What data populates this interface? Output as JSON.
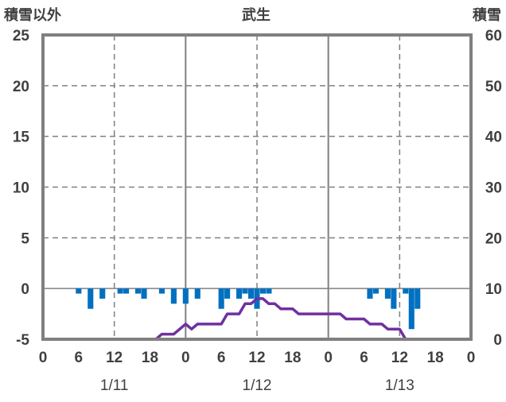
{
  "chart_data": {
    "type": "bar+line",
    "title": "武生",
    "y_left_label": "積雪以外",
    "y_right_label": "積雪",
    "y_left_ticks": [
      "25",
      "20",
      "15",
      "10",
      "5",
      "0",
      "-5"
    ],
    "y_right_ticks": [
      "60",
      "50",
      "40",
      "30",
      "20",
      "10",
      "0"
    ],
    "ylim_left": [
      -5,
      25
    ],
    "ylim_right": [
      0,
      60
    ],
    "x_hours": [
      0,
      72
    ],
    "x_tick_labels": [
      "0",
      "6",
      "12",
      "18",
      "0",
      "6",
      "12",
      "18",
      "0",
      "6",
      "12",
      "18",
      "0"
    ],
    "date_labels": [
      "1/11",
      "1/12",
      "1/13"
    ],
    "grid": true,
    "colors": {
      "bars": "#0070C0",
      "line": "#7030A0",
      "frame": "#808080"
    },
    "series": [
      {
        "kind": "bar",
        "axis": "left",
        "hours": [
          6,
          8,
          10,
          13,
          14,
          16,
          17,
          20,
          22,
          24,
          26,
          30,
          31,
          33,
          34,
          35,
          36,
          37,
          38,
          55,
          56,
          58,
          59,
          61,
          62,
          63
        ],
        "values": [
          -0.5,
          -2,
          -1,
          -0.5,
          -0.5,
          -0.5,
          -1,
          -0.5,
          -1.5,
          -1.5,
          -1,
          -2,
          -1,
          -1,
          -0.5,
          -1,
          -2,
          -0.5,
          -0.5,
          -1,
          -0.5,
          -1,
          -2,
          -0.5,
          -4,
          -2
        ]
      },
      {
        "kind": "line",
        "axis": "right",
        "hours": [
          12,
          19,
          20,
          22,
          24,
          25,
          26,
          30,
          31,
          33,
          34,
          35,
          36,
          37,
          38,
          39,
          40,
          42,
          43,
          46,
          50,
          51,
          54,
          55,
          57,
          58,
          60,
          61,
          72
        ],
        "values": [
          0,
          0,
          1,
          1,
          3,
          2,
          3,
          3,
          5,
          5,
          7,
          7,
          8,
          8,
          7,
          7,
          6,
          6,
          5,
          5,
          5,
          4,
          4,
          3,
          3,
          2,
          2,
          0,
          0
        ]
      }
    ]
  }
}
